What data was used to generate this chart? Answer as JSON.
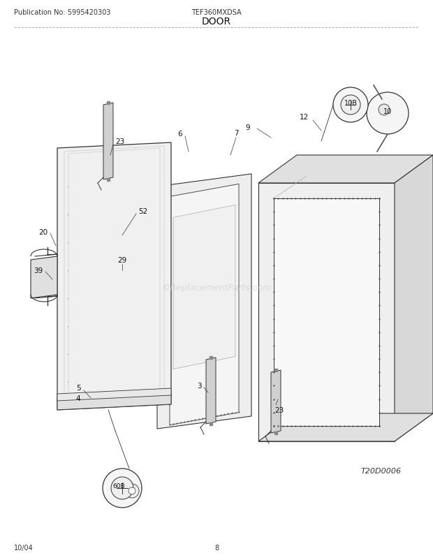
{
  "title": "DOOR",
  "publication": "Publication No: 5995420303",
  "model": "TEF360MXDSA",
  "date": "10/04",
  "page": "8",
  "ref_code": "T20D0006",
  "bg_color": "#ffffff",
  "line_color": "#333333",
  "watermark": "©ReplacementParts.com",
  "title_fontsize": 10,
  "header_fontsize": 7,
  "label_fontsize": 7.5
}
